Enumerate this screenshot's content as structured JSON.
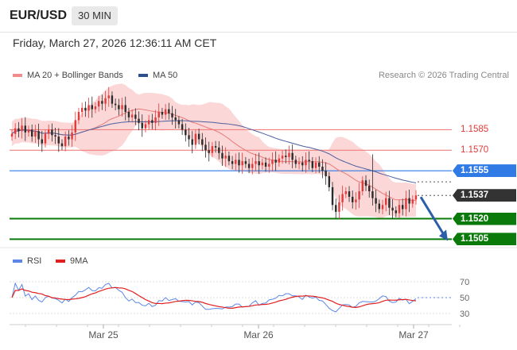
{
  "header": {
    "symbol": "EUR/USD",
    "timeframe": "30 MIN"
  },
  "datetime": "Friday, March 27, 2026 12:36:11 AM CET",
  "legend": {
    "bb": "MA 20 + Bollinger Bands",
    "ma50": "MA 50",
    "rsi": "RSI",
    "ma9": "9MA"
  },
  "credit": "Research © 2026 Trading Central",
  "colors": {
    "bullish": "#e03a3a",
    "bearish": "#2b2b2b",
    "band_fill": "#f9caca",
    "ma20": "#e87b7b",
    "ma50": "#4a5f9e",
    "resistance": "#f07f7f",
    "pivot": "#2f7ae5",
    "support": "#0a7a0a",
    "rsi": "#5b86e8",
    "rsi_ma": "#e02020",
    "arrow": "#2d5fa8"
  },
  "levels": [
    {
      "label": "1.1585",
      "value": 1.1585,
      "kind": "resistance"
    },
    {
      "label": "1.1570",
      "value": 1.157,
      "kind": "resistance"
    },
    {
      "label": "1.1555",
      "value": 1.1555,
      "kind": "pivot"
    },
    {
      "label": "1.1537",
      "value": 1.1537,
      "kind": "last"
    },
    {
      "label": "1.1520",
      "value": 1.152,
      "kind": "support"
    },
    {
      "label": "1.1505",
      "value": 1.1505,
      "kind": "support"
    }
  ],
  "chart_data": [
    {
      "type": "candlestick",
      "title": "EUR/USD 30 MIN",
      "xlabel": "",
      "ylabel": "",
      "ylim": [
        1.15,
        1.1616
      ],
      "x_ticks": [
        "Mar 25",
        "Mar 26",
        "Mar 27"
      ],
      "close_series": [
        1.1582,
        1.1586,
        1.1584,
        1.1588,
        1.1583,
        1.1585,
        1.158,
        1.1584,
        1.1578,
        1.1575,
        1.1582,
        1.1585,
        1.1581,
        1.158,
        1.1575,
        1.1573,
        1.158,
        1.1578,
        1.1583,
        1.1592,
        1.1598,
        1.1601,
        1.1599,
        1.1603,
        1.16,
        1.1602,
        1.1606,
        1.1604,
        1.1608,
        1.161,
        1.1604,
        1.1603,
        1.16,
        1.1603,
        1.1598,
        1.1594,
        1.1596,
        1.1593,
        1.159,
        1.1586,
        1.1589,
        1.1592,
        1.159,
        1.1594,
        1.1598,
        1.1596,
        1.16,
        1.1597,
        1.1594,
        1.1592,
        1.1589,
        1.1585,
        1.1581,
        1.1578,
        1.1574,
        1.1582,
        1.1578,
        1.1574,
        1.157,
        1.1568,
        1.1573,
        1.1572,
        1.1568,
        1.1564,
        1.1566,
        1.1562,
        1.156,
        1.1563,
        1.1559,
        1.1562,
        1.156,
        1.1557,
        1.156,
        1.1562,
        1.1559,
        1.1561,
        1.1558,
        1.156,
        1.1563,
        1.1561,
        1.1564,
        1.1566,
        1.1565,
        1.1568,
        1.1563,
        1.156,
        1.1561,
        1.1559,
        1.1563,
        1.1562,
        1.1557,
        1.1561,
        1.1558,
        1.1555,
        1.1551,
        1.1543,
        1.153,
        1.1525,
        1.1532,
        1.1538,
        1.154,
        1.1536,
        1.1532,
        1.1534,
        1.154,
        1.1548,
        1.1544,
        1.154,
        1.1535,
        1.1531,
        1.1527,
        1.153,
        1.1535,
        1.1528,
        1.1526,
        1.1524,
        1.153,
        1.1527,
        1.1535,
        1.1531,
        1.1534,
        1.1537
      ],
      "ma20": "approximate, from chart",
      "ma50": "approximate, from chart"
    },
    {
      "type": "line",
      "title": "",
      "series_names": [
        "RSI",
        "9MA"
      ],
      "ylim": [
        20,
        80
      ],
      "y_ticks": [
        70,
        50,
        30
      ],
      "rsi_end": 50,
      "ma9_end": 45
    }
  ]
}
